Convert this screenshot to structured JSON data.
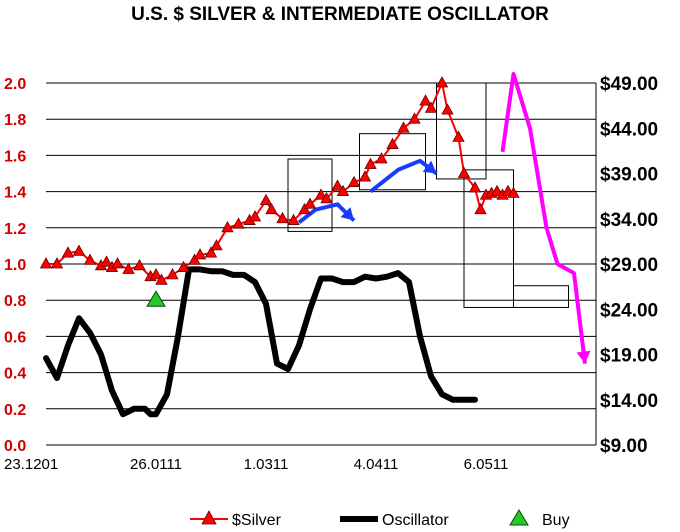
{
  "chart_data": {
    "type": "line",
    "title": "U.S. $ SILVER & INTERMEDIATE OSCILLATOR",
    "x_tick_labels": [
      "23.1201",
      "26.0111",
      "1.0311",
      "4.0411",
      "6.0511"
    ],
    "left_axis": {
      "ticks": [
        "0.0",
        "0.2",
        "0.4",
        "0.6",
        "0.8",
        "1.0",
        "1.2",
        "1.4",
        "1.6",
        "1.8",
        "2.0"
      ],
      "range": [
        0.0,
        2.0
      ]
    },
    "right_axis": {
      "ticks": [
        "$9.00",
        "$14.00",
        "$19.00",
        "$24.00",
        "$29.00",
        "$34.00",
        "$39.00",
        "$44.00",
        "$49.00"
      ],
      "range": [
        9,
        49
      ]
    },
    "x_range": [
      0,
      100
    ],
    "grid": true,
    "legend_position": "bottom",
    "legend": [
      {
        "label": "$Silver",
        "color": "#ff0000",
        "marker": "triangle"
      },
      {
        "label": "Oscillator",
        "color": "#000000",
        "marker": "none"
      },
      {
        "label": "Buy",
        "color": "#22cc22",
        "marker": "triangle"
      }
    ],
    "colors": {
      "silver": "#ff0000",
      "oscillator": "#000000",
      "buy": "#22cc22",
      "trend_blue": "#1a3cff",
      "trend_magenta": "#ff00ff"
    },
    "series": [
      {
        "name": "$Silver",
        "axis": "left",
        "x": [
          0,
          2,
          4,
          6,
          8,
          10,
          11,
          12,
          13,
          15,
          17,
          19,
          20,
          21,
          23,
          25,
          27,
          28,
          30,
          31,
          33,
          35,
          37,
          38,
          40,
          41,
          43,
          45,
          47,
          48,
          50,
          51,
          53,
          54,
          56,
          58,
          59,
          61,
          63,
          65,
          67,
          69,
          70,
          72,
          73,
          75,
          76,
          78,
          79,
          80,
          81,
          82,
          83,
          84,
          85
        ],
        "y": [
          1.0,
          1.0,
          1.06,
          1.07,
          1.02,
          0.99,
          1.01,
          0.98,
          1.0,
          0.97,
          0.99,
          0.93,
          0.94,
          0.91,
          0.94,
          0.98,
          1.02,
          1.05,
          1.06,
          1.1,
          1.2,
          1.22,
          1.24,
          1.26,
          1.35,
          1.3,
          1.25,
          1.24,
          1.3,
          1.33,
          1.38,
          1.36,
          1.43,
          1.4,
          1.45,
          1.48,
          1.55,
          1.58,
          1.66,
          1.75,
          1.8,
          1.9,
          1.86,
          2.0,
          1.85,
          1.7,
          1.5,
          1.42,
          1.3,
          1.38,
          1.39,
          1.4,
          1.38,
          1.4,
          1.39
        ]
      },
      {
        "name": "Oscillator",
        "axis": "left",
        "x": [
          0,
          2,
          4,
          6,
          8,
          10,
          12,
          14,
          16,
          18,
          19,
          20,
          22,
          24,
          26,
          28,
          30,
          32,
          34,
          36,
          38,
          40,
          42,
          44,
          46,
          48,
          50,
          52,
          54,
          56,
          58,
          60,
          62,
          64,
          66,
          68,
          70,
          72,
          74,
          75,
          76,
          77,
          78
        ],
        "y": [
          0.48,
          0.37,
          0.55,
          0.7,
          0.62,
          0.5,
          0.3,
          0.17,
          0.2,
          0.2,
          0.17,
          0.17,
          0.28,
          0.6,
          0.97,
          0.97,
          0.96,
          0.96,
          0.94,
          0.94,
          0.9,
          0.78,
          0.45,
          0.42,
          0.55,
          0.75,
          0.92,
          0.92,
          0.9,
          0.9,
          0.93,
          0.92,
          0.93,
          0.95,
          0.9,
          0.6,
          0.38,
          0.28,
          0.25,
          0.25,
          0.25,
          0.25,
          0.25
        ]
      },
      {
        "name": "Buy",
        "axis": "left",
        "x": [
          20
        ],
        "y": [
          0.8
        ]
      }
    ],
    "annotations": {
      "boxes": [
        {
          "x": [
            44,
            52
          ],
          "y": [
            1.18,
            1.58
          ]
        },
        {
          "x": [
            57,
            69
          ],
          "y": [
            1.41,
            1.72
          ]
        },
        {
          "x": [
            71,
            80
          ],
          "y": [
            1.47,
            2.0
          ]
        },
        {
          "x": [
            76,
            85
          ],
          "y": [
            0.76,
            1.52
          ]
        },
        {
          "x": [
            85,
            95
          ],
          "y": [
            0.76,
            0.88
          ]
        }
      ],
      "trend_lines_blue": [
        {
          "x": [
            46,
            49,
            53,
            56
          ],
          "y": [
            1.23,
            1.3,
            1.33,
            1.24
          ]
        },
        {
          "x": [
            59,
            64,
            68,
            71
          ],
          "y": [
            1.4,
            1.52,
            1.57,
            1.5
          ]
        }
      ],
      "trend_lines_magenta": [
        {
          "x": [
            83,
            85,
            88,
            91,
            93,
            96,
            98
          ],
          "y": [
            1.62,
            2.05,
            1.75,
            1.2,
            1.0,
            0.95,
            0.45
          ]
        }
      ]
    }
  }
}
